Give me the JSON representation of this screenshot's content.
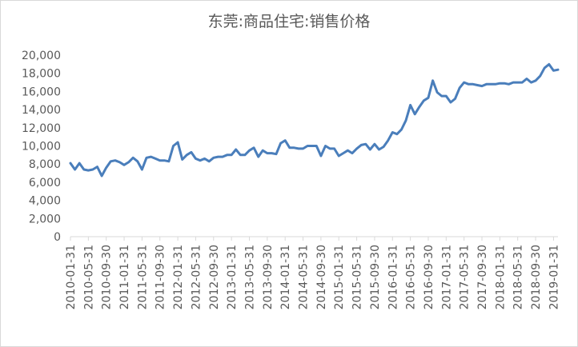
{
  "chart_data": {
    "type": "line",
    "title": "东莞:商品住宅:销售价格",
    "xlabel": "",
    "ylabel": "",
    "ylim": [
      0,
      20000
    ],
    "yticks": [
      "0",
      "2,000",
      "4,000",
      "6,000",
      "8,000",
      "10,000",
      "12,000",
      "14,000",
      "16,000",
      "18,000",
      "20,000"
    ],
    "grid": false,
    "legend": "none",
    "line_color": "#4a7ebb",
    "x_tick_labels": [
      "2010-01-31",
      "2010-05-31",
      "2010-09-30",
      "2011-01-31",
      "2011-05-31",
      "2011-09-30",
      "2012-01-31",
      "2012-05-31",
      "2012-09-30",
      "2013-01-31",
      "2013-05-31",
      "2013-09-30",
      "2014-01-31",
      "2014-05-31",
      "2014-09-30",
      "2015-01-31",
      "2015-05-31",
      "2015-09-30",
      "2016-01-31",
      "2016-05-31",
      "2016-09-30",
      "2017-01-31",
      "2017-05-31",
      "2017-09-30",
      "2018-01-31",
      "2018-05-31",
      "2018-09-30",
      "2019-01-31"
    ],
    "series": [
      {
        "x_start": "2010-01-31",
        "x_end": "2019-02-28",
        "frequency": "monthly",
        "values": [
          8100,
          7400,
          8100,
          7400,
          7300,
          7400,
          7700,
          6700,
          7600,
          8300,
          8400,
          8200,
          7900,
          8200,
          8700,
          8300,
          7400,
          8700,
          8800,
          8600,
          8400,
          8400,
          8300,
          10000,
          10400,
          8500,
          9000,
          9300,
          8600,
          8400,
          8600,
          8300,
          8700,
          8800,
          8800,
          9000,
          9000,
          9600,
          9000,
          9000,
          9500,
          9800,
          8800,
          9500,
          9200,
          9200,
          9100,
          10300,
          10600,
          9800,
          9800,
          9700,
          9700,
          10000,
          10000,
          10000,
          8900,
          10000,
          9700,
          9700,
          8900,
          9200,
          9500,
          9200,
          9700,
          10100,
          10200,
          9600,
          10200,
          9600,
          9900,
          10600,
          11500,
          11300,
          11800,
          12800,
          14500,
          13500,
          14300,
          15000,
          15300,
          17200,
          15900,
          15500,
          15500,
          14800,
          15200,
          16400,
          17000,
          16800,
          16800,
          16700,
          16600,
          16800,
          16800,
          16800,
          16900,
          16900,
          16800,
          17000,
          17000,
          17000,
          17400,
          17000,
          17200,
          17700,
          18600,
          19000,
          18300,
          18400
        ]
      }
    ]
  }
}
